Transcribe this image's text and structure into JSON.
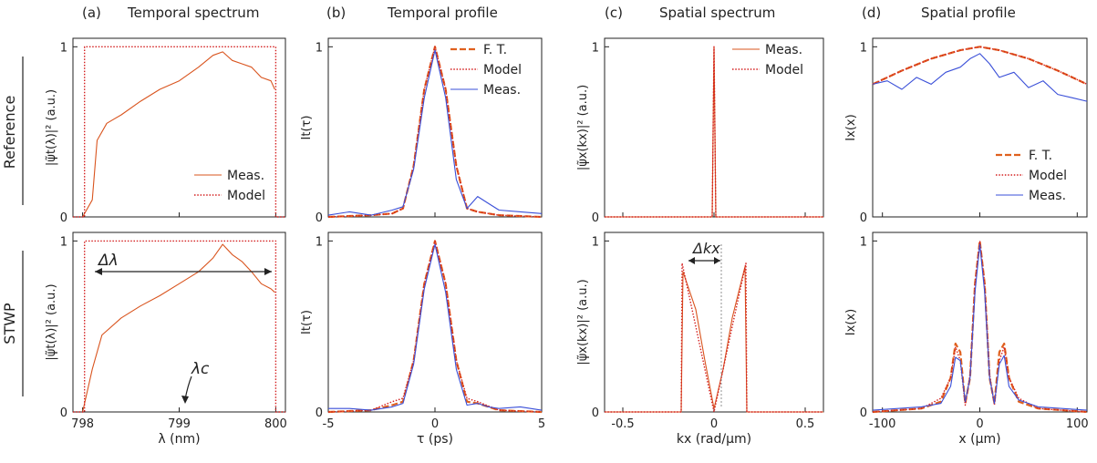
{
  "figure": {
    "row_labels": [
      "Reference",
      "STWP"
    ],
    "columns": [
      {
        "letter": "(a)",
        "title": "Temporal spectrum"
      },
      {
        "letter": "(b)",
        "title": "Temporal profile"
      },
      {
        "letter": "(c)",
        "title": "Spatial spectrum"
      },
      {
        "letter": "(d)",
        "title": "Spatial profile"
      }
    ],
    "annotations": {
      "delta_lambda": "Δλ",
      "lambda_c": "λc",
      "delta_kx": "Δkx"
    }
  },
  "colors": {
    "measured": "#d9541e",
    "model": "#d42020",
    "ft": "#e0601e",
    "meas_blue": "#3a4fd8",
    "axis": "#222222"
  },
  "chart_data": [
    {
      "id": "a-ref",
      "panel": "(a)",
      "row": "Reference",
      "type": "line",
      "xlim": [
        797.9,
        800.1
      ],
      "ylim": [
        0,
        1.05
      ],
      "xticks": [
        798,
        799,
        800
      ],
      "yticks": [
        0,
        1
      ],
      "ylabel": "|ψ̃t(λ)|² (a.u.)",
      "legend": {
        "position": "bottom-right",
        "entries": [
          "Meas.",
          "Model"
        ]
      },
      "series": [
        {
          "name": "Meas.",
          "style": "solid",
          "color": "#d9541e",
          "x": [
            798.0,
            798.1,
            798.15,
            798.25,
            798.4,
            798.6,
            798.8,
            799.0,
            799.2,
            799.35,
            799.45,
            799.55,
            799.65,
            799.75,
            799.85,
            799.95,
            799.99
          ],
          "y": [
            0.0,
            0.1,
            0.45,
            0.55,
            0.6,
            0.68,
            0.75,
            0.8,
            0.88,
            0.95,
            0.97,
            0.92,
            0.9,
            0.88,
            0.82,
            0.8,
            0.75
          ]
        },
        {
          "name": "Model",
          "style": "dotted",
          "color": "#d42020",
          "x": [
            797.9,
            798.02,
            798.02,
            800.0,
            800.0,
            800.1
          ],
          "y": [
            0,
            0,
            1,
            1,
            0,
            0
          ]
        }
      ]
    },
    {
      "id": "b-ref",
      "panel": "(b)",
      "row": "Reference",
      "type": "line",
      "xlim": [
        -5,
        5
      ],
      "ylim": [
        0,
        1.05
      ],
      "xticks": [
        -5,
        0,
        5
      ],
      "yticks": [
        0,
        1
      ],
      "ylabel": "It(τ)",
      "legend": {
        "position": "top-right",
        "entries": [
          "F. T.",
          "Model",
          "Meas."
        ]
      },
      "series": [
        {
          "name": "F. T.",
          "style": "dash",
          "color": "#e0601e",
          "x": [
            -5,
            -3,
            -2,
            -1.5,
            -1,
            -0.5,
            0,
            0.5,
            1,
            1.5,
            2,
            3,
            5
          ],
          "y": [
            0,
            0.01,
            0.02,
            0.05,
            0.3,
            0.75,
            1.0,
            0.75,
            0.3,
            0.05,
            0.03,
            0.01,
            0
          ]
        },
        {
          "name": "Model",
          "style": "dotted",
          "color": "#d42020",
          "x": [
            -5,
            -3,
            -2,
            -1.5,
            -1,
            -0.5,
            0,
            0.5,
            1,
            1.5,
            2,
            3,
            5
          ],
          "y": [
            0,
            0.01,
            0.02,
            0.05,
            0.3,
            0.75,
            1.0,
            0.75,
            0.3,
            0.05,
            0.03,
            0.01,
            0
          ]
        },
        {
          "name": "Meas.",
          "style": "solid",
          "color": "#3a4fd8",
          "x": [
            -5,
            -4,
            -3,
            -2,
            -1.5,
            -1,
            -0.5,
            0,
            0.5,
            1,
            1.5,
            2,
            2.5,
            3,
            4,
            5
          ],
          "y": [
            0.01,
            0.03,
            0.01,
            0.04,
            0.06,
            0.28,
            0.7,
            0.98,
            0.7,
            0.22,
            0.05,
            0.12,
            0.08,
            0.04,
            0.03,
            0.02
          ]
        }
      ]
    },
    {
      "id": "c-ref",
      "panel": "(c)",
      "row": "Reference",
      "type": "line",
      "xlim": [
        -0.6,
        0.6
      ],
      "ylim": [
        0,
        1.05
      ],
      "xticks": [
        -0.5,
        0,
        0.5
      ],
      "yticks": [
        0,
        1
      ],
      "ylabel": "|ψ̃x(kx)|² (a.u.)",
      "legend": {
        "position": "top-right",
        "entries": [
          "Meas.",
          "Model"
        ]
      },
      "series": [
        {
          "name": "Meas.",
          "style": "solid",
          "color": "#d9541e",
          "x": [
            -0.6,
            -0.01,
            0.0,
            0.01,
            0.6
          ],
          "y": [
            0,
            0,
            1.0,
            0,
            0
          ]
        },
        {
          "name": "Model",
          "style": "dotted",
          "color": "#d42020",
          "x": [
            -0.6,
            -0.01,
            0.0,
            0.01,
            0.6
          ],
          "y": [
            0,
            0,
            1.0,
            0,
            0
          ]
        }
      ]
    },
    {
      "id": "d-ref",
      "panel": "(d)",
      "row": "Reference",
      "type": "line",
      "xlim": [
        -110,
        110
      ],
      "ylim": [
        0,
        1.05
      ],
      "xticks": [
        -100,
        0,
        100
      ],
      "yticks": [
        0,
        1
      ],
      "ylabel": "Ix(x)",
      "legend": {
        "position": "bottom-right",
        "entries": [
          "F. T.",
          "Model",
          "Meas."
        ]
      },
      "series": [
        {
          "name": "F. T.",
          "style": "dash",
          "color": "#e0601e",
          "x": [
            -110,
            -80,
            -50,
            -20,
            0,
            20,
            50,
            80,
            110
          ],
          "y": [
            0.78,
            0.86,
            0.93,
            0.98,
            1.0,
            0.98,
            0.93,
            0.86,
            0.78
          ]
        },
        {
          "name": "Model",
          "style": "dotted",
          "color": "#d42020",
          "x": [
            -110,
            -80,
            -50,
            -20,
            0,
            20,
            50,
            80,
            110
          ],
          "y": [
            0.78,
            0.86,
            0.93,
            0.98,
            1.0,
            0.98,
            0.93,
            0.86,
            0.78
          ]
        },
        {
          "name": "Meas.",
          "style": "solid",
          "color": "#3a4fd8",
          "x": [
            -110,
            -95,
            -80,
            -65,
            -50,
            -35,
            -20,
            -10,
            0,
            10,
            20,
            35,
            50,
            65,
            80,
            95,
            110
          ],
          "y": [
            0.78,
            0.8,
            0.75,
            0.82,
            0.78,
            0.85,
            0.88,
            0.93,
            0.96,
            0.9,
            0.82,
            0.85,
            0.76,
            0.8,
            0.72,
            0.7,
            0.68
          ]
        }
      ]
    },
    {
      "id": "a-stwp",
      "panel": "(a)",
      "row": "STWP",
      "type": "line",
      "xlim": [
        797.9,
        800.1
      ],
      "ylim": [
        0,
        1.05
      ],
      "xticks": [
        798,
        799,
        800
      ],
      "yticks": [
        0,
        1
      ],
      "xlabel": "λ (nm)",
      "ylabel": "|ψ̃t(λ)|² (a.u.)",
      "series": [
        {
          "name": "Meas.",
          "style": "solid",
          "color": "#d9541e",
          "x": [
            798.0,
            798.1,
            798.2,
            798.4,
            798.6,
            798.8,
            799.0,
            799.2,
            799.35,
            799.45,
            799.55,
            799.65,
            799.75,
            799.85,
            799.95,
            799.99
          ],
          "y": [
            0.0,
            0.25,
            0.45,
            0.55,
            0.62,
            0.68,
            0.75,
            0.82,
            0.9,
            0.98,
            0.92,
            0.88,
            0.82,
            0.75,
            0.72,
            0.7
          ]
        },
        {
          "name": "Model",
          "style": "dotted",
          "color": "#d42020",
          "x": [
            797.9,
            798.02,
            798.02,
            800.0,
            800.0,
            800.1
          ],
          "y": [
            0,
            0,
            1,
            1,
            0,
            0
          ]
        }
      ]
    },
    {
      "id": "b-stwp",
      "panel": "(b)",
      "row": "STWP",
      "type": "line",
      "xlim": [
        -5,
        5
      ],
      "ylim": [
        0,
        1.05
      ],
      "xticks": [
        -5,
        0,
        5
      ],
      "yticks": [
        0,
        1
      ],
      "xlabel": "τ (ps)",
      "ylabel": "It(τ)",
      "series": [
        {
          "name": "F. T.",
          "style": "dash",
          "color": "#e0601e",
          "x": [
            -5,
            -3,
            -2,
            -1.5,
            -1,
            -0.5,
            0,
            0.5,
            1,
            1.5,
            2,
            3,
            5
          ],
          "y": [
            0,
            0.01,
            0.04,
            0.06,
            0.3,
            0.75,
            1.0,
            0.75,
            0.3,
            0.06,
            0.05,
            0.01,
            0
          ]
        },
        {
          "name": "Model",
          "style": "dotted",
          "color": "#d42020",
          "x": [
            -5,
            -3,
            -2,
            -1.5,
            -1,
            -0.5,
            0,
            0.5,
            1,
            1.5,
            2,
            3,
            5
          ],
          "y": [
            0,
            0.01,
            0.06,
            0.08,
            0.3,
            0.75,
            1.0,
            0.75,
            0.3,
            0.08,
            0.06,
            0.01,
            0
          ]
        },
        {
          "name": "Meas.",
          "style": "solid",
          "color": "#3a4fd8",
          "x": [
            -5,
            -4,
            -3,
            -2,
            -1.5,
            -1,
            -0.5,
            0,
            0.5,
            1,
            1.5,
            2,
            2.5,
            3,
            4,
            5
          ],
          "y": [
            0.02,
            0.02,
            0.01,
            0.03,
            0.05,
            0.28,
            0.72,
            0.98,
            0.7,
            0.25,
            0.04,
            0.05,
            0.03,
            0.02,
            0.03,
            0.01
          ]
        }
      ]
    },
    {
      "id": "c-stwp",
      "panel": "(c)",
      "row": "STWP",
      "type": "line",
      "xlim": [
        -0.6,
        0.6
      ],
      "ylim": [
        0,
        1.05
      ],
      "xticks": [
        -0.5,
        0,
        0.5
      ],
      "yticks": [
        0,
        1
      ],
      "xlabel": "kx (rad/μm)",
      "ylabel": "|ψ̃x(kx)|² (a.u.)",
      "series": [
        {
          "name": "Meas.",
          "style": "solid",
          "color": "#d9541e",
          "x": [
            -0.6,
            -0.18,
            -0.17,
            -0.1,
            -0.05,
            0.0,
            0.05,
            0.1,
            0.17,
            0.18,
            0.6
          ],
          "y": [
            0,
            0,
            0.82,
            0.6,
            0.3,
            0.02,
            0.25,
            0.55,
            0.85,
            0,
            0
          ]
        },
        {
          "name": "Model",
          "style": "dotted",
          "color": "#d42020",
          "x": [
            -0.6,
            -0.18,
            -0.175,
            -0.1,
            -0.05,
            0.0,
            0.05,
            0.1,
            0.175,
            0.18,
            0.6
          ],
          "y": [
            0,
            0,
            0.87,
            0.5,
            0.25,
            0.0,
            0.25,
            0.5,
            0.87,
            0,
            0
          ]
        }
      ]
    },
    {
      "id": "d-stwp",
      "panel": "(d)",
      "row": "STWP",
      "type": "line",
      "xlim": [
        -110,
        110
      ],
      "ylim": [
        0,
        1.05
      ],
      "xticks": [
        -100,
        0,
        100
      ],
      "yticks": [
        0,
        1
      ],
      "xlabel": "x (μm)",
      "ylabel": "Ix(x)",
      "series": [
        {
          "name": "F. T.",
          "style": "dash",
          "color": "#e0601e",
          "x": [
            -110,
            -60,
            -40,
            -30,
            -25,
            -20,
            -15,
            -10,
            -5,
            0,
            5,
            10,
            15,
            20,
            25,
            30,
            40,
            60,
            110
          ],
          "y": [
            0,
            0.02,
            0.06,
            0.2,
            0.4,
            0.35,
            0.05,
            0.2,
            0.75,
            1.0,
            0.75,
            0.2,
            0.05,
            0.35,
            0.4,
            0.2,
            0.06,
            0.02,
            0
          ]
        },
        {
          "name": "Model",
          "style": "dotted",
          "color": "#d42020",
          "x": [
            -110,
            -60,
            -40,
            -30,
            -25,
            -20,
            -15,
            -10,
            -5,
            0,
            5,
            10,
            15,
            20,
            25,
            30,
            40,
            60,
            110
          ],
          "y": [
            0,
            0.02,
            0.08,
            0.2,
            0.38,
            0.3,
            0.04,
            0.22,
            0.75,
            1.0,
            0.75,
            0.22,
            0.04,
            0.3,
            0.38,
            0.2,
            0.08,
            0.02,
            0
          ]
        },
        {
          "name": "Meas.",
          "style": "solid",
          "color": "#3a4fd8",
          "x": [
            -110,
            -60,
            -40,
            -30,
            -25,
            -20,
            -15,
            -10,
            -5,
            0,
            5,
            10,
            15,
            20,
            25,
            30,
            40,
            60,
            110
          ],
          "y": [
            0.01,
            0.03,
            0.05,
            0.15,
            0.32,
            0.3,
            0.06,
            0.2,
            0.7,
            0.98,
            0.7,
            0.2,
            0.05,
            0.28,
            0.33,
            0.15,
            0.07,
            0.03,
            0.01
          ]
        }
      ]
    }
  ]
}
